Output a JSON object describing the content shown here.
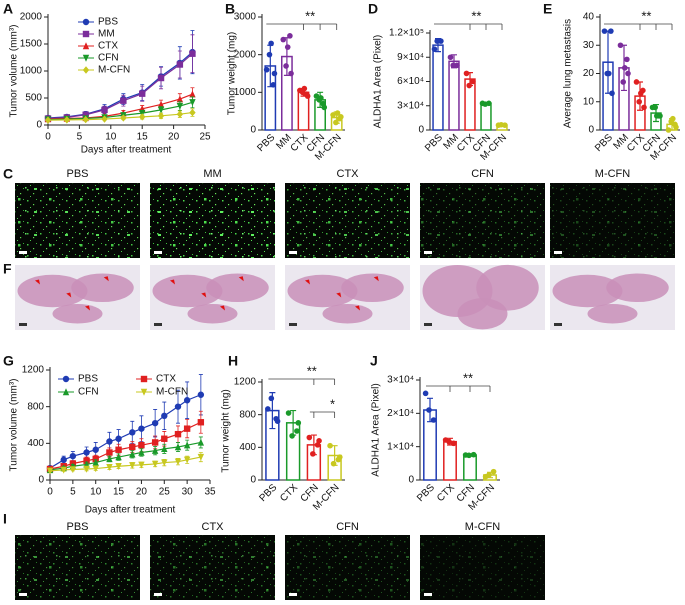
{
  "chart_data": [
    {
      "label": "A",
      "type": "line",
      "x_label": "Days after treatment",
      "y_label": "Tumor volume (mm³)",
      "xlim": [
        0,
        25
      ],
      "xticks": [
        0,
        5,
        10,
        15,
        20,
        25
      ],
      "ylim": [
        0,
        2000
      ],
      "yticks": [
        0,
        500,
        1000,
        1500,
        2000
      ],
      "x": [
        0,
        3,
        6,
        9,
        12,
        15,
        18,
        21,
        23
      ],
      "legend": "upper left",
      "series": [
        {
          "name": "PBS",
          "color": "#1f3bb3",
          "marker": "circle",
          "values": [
            130,
            150,
            200,
            300,
            480,
            600,
            900,
            1150,
            1350
          ],
          "errors": [
            20,
            30,
            50,
            80,
            100,
            150,
            180,
            300,
            400
          ]
        },
        {
          "name": "MM",
          "color": "#7b2d9b",
          "marker": "square",
          "values": [
            120,
            140,
            190,
            280,
            450,
            580,
            870,
            1120,
            1320
          ],
          "errors": [
            20,
            30,
            50,
            70,
            100,
            140,
            200,
            250,
            350
          ]
        },
        {
          "name": "CTX",
          "color": "#e02020",
          "marker": "triangle",
          "values": [
            110,
            120,
            130,
            160,
            220,
            300,
            380,
            480,
            570
          ],
          "errors": [
            10,
            20,
            20,
            30,
            50,
            60,
            80,
            100,
            120
          ]
        },
        {
          "name": "CFN",
          "color": "#1a9a2a",
          "marker": "triangle-down",
          "values": [
            100,
            110,
            120,
            140,
            180,
            220,
            280,
            350,
            420
          ],
          "errors": [
            10,
            15,
            20,
            25,
            40,
            50,
            60,
            80,
            100
          ]
        },
        {
          "name": "M-CFN",
          "color": "#c8c820",
          "marker": "diamond",
          "values": [
            90,
            95,
            100,
            110,
            130,
            150,
            170,
            200,
            230
          ],
          "errors": [
            10,
            10,
            15,
            20,
            30,
            40,
            50,
            60,
            70
          ]
        }
      ]
    },
    {
      "label": "B",
      "type": "bar",
      "y_label": "Tumor weight (mg)",
      "ylim": [
        0,
        3000
      ],
      "yticks": [
        0,
        1000,
        2000,
        3000
      ],
      "annotations": [
        "**"
      ],
      "categories": [
        "PBS",
        "MM",
        "CTX",
        "CFN",
        "M-CFN"
      ],
      "colors": [
        "#1f3bb3",
        "#7b2d9b",
        "#e02020",
        "#1a9a2a",
        "#c8c820"
      ],
      "values": [
        1700,
        1950,
        1000,
        800,
        330
      ],
      "errors": [
        550,
        500,
        100,
        200,
        150
      ],
      "points": [
        [
          1600,
          1200,
          2000,
          1500,
          2300
        ],
        [
          2400,
          2500,
          1700,
          1500,
          2200
        ],
        [
          1050,
          950,
          1000,
          900,
          1100
        ],
        [
          900,
          700,
          800,
          600,
          850
        ],
        [
          400,
          300,
          200,
          350,
          450
        ]
      ]
    },
    {
      "label": "D",
      "type": "bar",
      "y_label": "ALDHA1 Area (Pixel)",
      "ylim": [
        0,
        120000
      ],
      "yticks": [
        0,
        {
          "value": 30000,
          "label": "3×10⁴"
        },
        {
          "value": 60000,
          "label": "6×10⁴"
        },
        {
          "value": 90000,
          "label": "9×10⁴"
        },
        {
          "value": 120000,
          "label": "1.2×10⁵"
        }
      ],
      "annotations": [
        "**"
      ],
      "categories": [
        "PBS",
        "MM",
        "CTX",
        "CFN",
        "M-CFN"
      ],
      "colors": [
        "#1f3bb3",
        "#7b2d9b",
        "#e02020",
        "#1a9a2a",
        "#c8c820"
      ],
      "values": [
        105000,
        85000,
        63000,
        33000,
        6000
      ],
      "errors": [
        8000,
        8000,
        8000,
        1000,
        1000
      ],
      "points": [
        [
          100000,
          110000,
          110000
        ],
        [
          90000,
          80000,
          80000
        ],
        [
          70000,
          60000,
          55000
        ],
        [
          33000,
          33000,
          32000
        ],
        [
          6000,
          6000,
          6500
        ]
      ]
    },
    {
      "label": "E",
      "type": "bar",
      "y_label": "Average lung metastasis",
      "ylim": [
        0,
        40
      ],
      "yticks": [
        0,
        10,
        20,
        30,
        40
      ],
      "annotations": [
        "**"
      ],
      "categories": [
        "PBS",
        "MM",
        "CTX",
        "CFN",
        "M-CFN"
      ],
      "colors": [
        "#1f3bb3",
        "#7b2d9b",
        "#e02020",
        "#1a9a2a",
        "#c8c820"
      ],
      "values": [
        24,
        22,
        12,
        6,
        2
      ],
      "errors": [
        11,
        8,
        5,
        3,
        2
      ],
      "points": [
        [
          35,
          35,
          20,
          13,
          20
        ],
        [
          30,
          25,
          17,
          20,
          22
        ],
        [
          17,
          14,
          10,
          8,
          13
        ],
        [
          8,
          5,
          8,
          5,
          5
        ],
        [
          0,
          2,
          3,
          1,
          4
        ]
      ]
    },
    {
      "label": "G",
      "type": "line",
      "x_label": "Days after treatment",
      "y_label": "Tumor volume (mm³)",
      "xlim": [
        0,
        35
      ],
      "xticks": [
        0,
        5,
        10,
        15,
        20,
        25,
        30,
        35
      ],
      "ylim": [
        0,
        1200
      ],
      "yticks": [
        0,
        400,
        800,
        1200
      ],
      "x": [
        0,
        3,
        5,
        8,
        10,
        13,
        15,
        18,
        20,
        23,
        25,
        28,
        30,
        33
      ],
      "legend": "upper left",
      "series": [
        {
          "name": "PBS",
          "color": "#1f3bb3",
          "marker": "circle",
          "values": [
            130,
            220,
            260,
            300,
            330,
            420,
            450,
            520,
            560,
            620,
            700,
            800,
            870,
            930
          ],
          "errors": [
            20,
            40,
            50,
            60,
            80,
            100,
            100,
            120,
            140,
            150,
            150,
            180,
            200,
            220
          ]
        },
        {
          "name": "CTX",
          "color": "#e02020",
          "marker": "square",
          "values": [
            120,
            150,
            180,
            210,
            230,
            300,
            330,
            360,
            380,
            410,
            450,
            500,
            560,
            630
          ],
          "errors": [
            20,
            30,
            30,
            40,
            40,
            50,
            60,
            60,
            70,
            70,
            80,
            90,
            100,
            120
          ]
        },
        {
          "name": "CFN",
          "color": "#1a9a2a",
          "marker": "triangle",
          "values": [
            110,
            130,
            150,
            170,
            190,
            230,
            250,
            280,
            300,
            320,
            340,
            360,
            380,
            410
          ],
          "errors": [
            15,
            20,
            20,
            25,
            30,
            30,
            35,
            40,
            40,
            45,
            50,
            50,
            55,
            60
          ]
        },
        {
          "name": "M-CFN",
          "color": "#c8c820",
          "marker": "triangle-down",
          "values": [
            100,
            110,
            115,
            120,
            125,
            140,
            150,
            160,
            165,
            175,
            190,
            200,
            220,
            250
          ],
          "errors": [
            10,
            15,
            15,
            20,
            20,
            25,
            25,
            30,
            30,
            30,
            35,
            35,
            40,
            50
          ]
        }
      ]
    },
    {
      "label": "H",
      "type": "bar",
      "y_label": "Tumor weight (mg)",
      "ylim": [
        0,
        1200
      ],
      "yticks": [
        0,
        400,
        800,
        1200
      ],
      "annotations": [
        "**",
        "*"
      ],
      "categories": [
        "PBS",
        "CTX",
        "CFN",
        "M-CFN"
      ],
      "colors": [
        "#1f3bb3",
        "#1a9a2a",
        "#e02020",
        "#c8c820"
      ],
      "values": [
        850,
        700,
        430,
        300
      ],
      "errors": [
        220,
        150,
        120,
        120
      ],
      "points": [
        [
          870,
          750,
          1000,
          720
        ],
        [
          820,
          600,
          540,
          700
        ],
        [
          520,
          430,
          320,
          480
        ],
        [
          420,
          250,
          200,
          280
        ]
      ]
    },
    {
      "label": "J",
      "type": "bar",
      "y_label": "ALDHA1 Area (Pixel)",
      "ylim": [
        0,
        30000
      ],
      "yticks": [
        0,
        {
          "value": 10000,
          "label": "1×10⁴"
        },
        {
          "value": 20000,
          "label": "2×10⁴"
        },
        {
          "value": 30000,
          "label": "3×10⁴"
        }
      ],
      "annotations": [
        "**"
      ],
      "categories": [
        "PBS",
        "CTX",
        "CFN",
        "M-CFN"
      ],
      "colors": [
        "#1f3bb3",
        "#e02020",
        "#1a9a2a",
        "#c8c820"
      ],
      "values": [
        21000,
        11500,
        7500,
        1500
      ],
      "errors": [
        3500,
        1000,
        300,
        800
      ],
      "points": [
        [
          26000,
          18000,
          21000
        ],
        [
          12000,
          11000,
          11500
        ],
        [
          7500,
          7600,
          7400
        ],
        [
          1000,
          2500,
          1500
        ]
      ]
    }
  ],
  "image_panels": [
    {
      "label": "C",
      "titles": [
        "PBS",
        "MM",
        "CTX",
        "CFN",
        "M-CFN"
      ]
    },
    {
      "label": "F"
    },
    {
      "label": "I",
      "titles": [
        "PBS",
        "CTX",
        "CFN",
        "M-CFN"
      ]
    }
  ]
}
